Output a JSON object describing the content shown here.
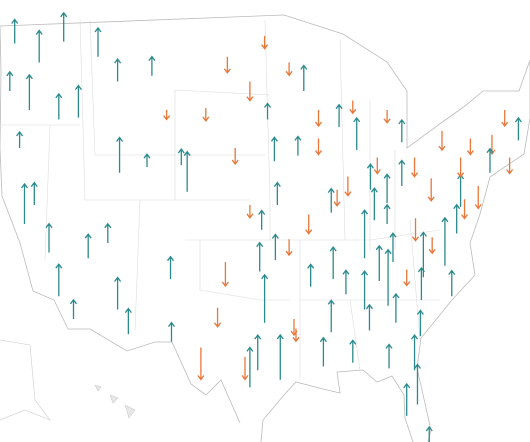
{
  "colors": {
    "gain": "#2b8a8c",
    "loss": "#e8773a"
  },
  "arrows": {
    "lon": [
      -122.5,
      -120,
      -117.5,
      -123,
      -121,
      -118,
      -122,
      -120.5,
      -121.5,
      -119,
      -118,
      -116.5,
      -115,
      -116,
      -114,
      -112,
      -111.8,
      -112,
      -110.9,
      -106.6,
      -104.9,
      -105.5,
      -108.5,
      -107,
      -109,
      -113,
      -103,
      -100.8,
      -97,
      -98.5,
      -96.7,
      -100,
      -96,
      -98.5,
      -97.3,
      -95.7,
      -101,
      -97.5,
      -95.9,
      -101.8,
      -97,
      -98.5,
      -95.4,
      -99,
      -103.5,
      -106.5,
      -94,
      -97.7,
      -93,
      -94.5,
      -91.5,
      -89.4,
      -88,
      -93.6,
      -91.5,
      -90.2,
      -92.5,
      -94.5,
      -92.3,
      -90.2,
      -91,
      -93.8,
      -89.6,
      -87.6,
      -88.5,
      -86.2,
      -85.5,
      -83,
      -84.5,
      -84.5,
      -83,
      -81.7,
      -80,
      -85.8,
      -84.5,
      -86.8,
      -85.3,
      -83.9,
      -90,
      -88.7,
      -86.8,
      -86.3,
      -88,
      -84.4,
      -83.6,
      -81.1,
      -82.5,
      -81.4,
      -80.2,
      -84.3,
      -81.7,
      -80.8,
      -78.6,
      -77.9,
      -81,
      -82.5,
      -77.4,
      -79.9,
      -81.6,
      -77,
      -76.6,
      -75.2,
      -77,
      -76,
      -73.8,
      -74,
      -72,
      -71.1,
      -72.5,
      -78.9
    ],
    "lat": [
      47.5,
      46.5,
      47.6,
      45,
      44,
      43.5,
      42,
      39,
      38,
      36.5,
      34.2,
      33,
      36.2,
      43.6,
      46.8,
      45.5,
      40.7,
      33.5,
      32.2,
      35.1,
      39.7,
      41.1,
      45.8,
      44,
      41,
      37,
      44.1,
      46.8,
      47.9,
      45.5,
      43.5,
      42,
      41.3,
      39,
      37.7,
      39,
      36,
      35.5,
      36.1,
      33.6,
      32.8,
      29.4,
      29.8,
      31,
      31.5,
      31.8,
      33,
      30.3,
      45,
      46.5,
      44,
      43.1,
      44.5,
      41.6,
      42.5,
      38.6,
      38.5,
      37.2,
      34.7,
      32.3,
      30.5,
      32.5,
      39.8,
      41.9,
      40.5,
      39.8,
      41.5,
      42.3,
      44,
      39.1,
      40,
      41.5,
      40.4,
      38.2,
      38,
      36.2,
      35,
      36,
      35.1,
      34.3,
      33.5,
      32.4,
      30.7,
      33.7,
      32.8,
      32.1,
      27.9,
      28.5,
      25.8,
      30.4,
      30.3,
      35.2,
      35.8,
      34.2,
      34,
      35.6,
      37.5,
      37.3,
      38.3,
      38.9,
      39.3,
      40,
      41.5,
      42.5,
      42.7,
      40.7,
      41.5,
      42.4,
      44,
      42.9
    ],
    "change": [
      15,
      20,
      18,
      12,
      22,
      16,
      10,
      14,
      25,
      18,
      20,
      12,
      15,
      20,
      18,
      14,
      22,
      20,
      16,
      14,
      25,
      10,
      12,
      -6,
      8,
      12,
      -8,
      -10,
      -8,
      -12,
      10,
      -10,
      15,
      -8,
      12,
      14,
      -15,
      18,
      16,
      -12,
      30,
      25,
      28,
      -14,
      -20,
      12,
      -10,
      22,
      16,
      -8,
      -10,
      14,
      -8,
      12,
      -10,
      15,
      -12,
      -10,
      14,
      20,
      18,
      -8,
      -10,
      20,
      -12,
      16,
      -10,
      14,
      -8,
      18,
      16,
      -12,
      -14,
      20,
      12,
      30,
      22,
      18,
      20,
      15,
      24,
      16,
      14,
      35,
      18,
      16,
      20,
      25,
      18,
      15,
      22,
      28,
      30,
      16,
      20,
      -10,
      18,
      -10,
      -14,
      20,
      -12,
      -14,
      -12,
      -10,
      -12,
      15,
      -10,
      14,
      -10,
      -12
    ]
  }
}
